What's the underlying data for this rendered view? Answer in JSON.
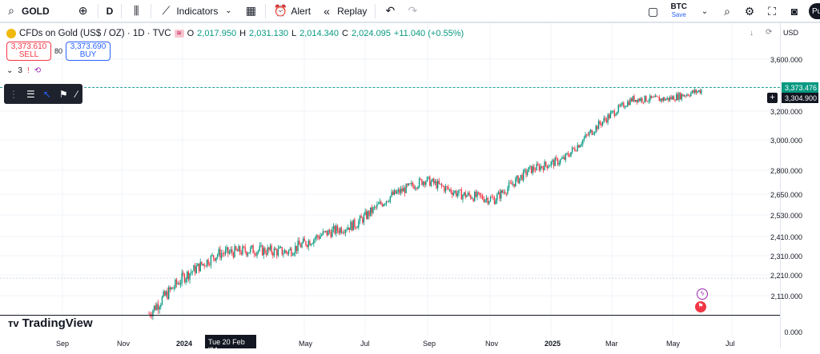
{
  "topbar": {
    "symbol": "GOLD",
    "interval": "D",
    "indicators_label": "Indicators",
    "alert_label": "Alert",
    "replay_label": "Replay",
    "btc_symbol": "BTC",
    "btc_save": "Save",
    "publish_short": "Pu"
  },
  "legend": {
    "title": "CFDs on Gold (US$ / OZ) · 1D · TVC",
    "o_label": "O",
    "o_val": "2,017.950",
    "h_label": "H",
    "h_val": "2,031.130",
    "l_label": "L",
    "l_val": "2,014.340",
    "c_label": "C",
    "c_val": "2,024.095",
    "change": "+11.040 (+0.55%)"
  },
  "trade": {
    "sell_price": "3,373.610",
    "sell_label": "SELL",
    "spread": "80",
    "buy_price": "3,373.690",
    "buy_label": "BUY"
  },
  "indicators_count": "3",
  "currency": "USD",
  "price_scale": [
    "3,600.000",
    "3,400.000",
    "3,200.000",
    "3,000.000",
    "2,800.000",
    "2,650.000",
    "2,530.000",
    "2,410.000",
    "2,310.000",
    "2,210.000",
    "2,110.000",
    "0.000"
  ],
  "price_tags": {
    "last": "3,373.476",
    "cursor": "3,304.900"
  },
  "x_axis": [
    "Sep",
    "Nov",
    "2024",
    "May",
    "Jul",
    "Sep",
    "Nov",
    "2025",
    "Mar",
    "May",
    "Jul"
  ],
  "date_tag": "Tue 20 Feb '24",
  "brand": "TradingView",
  "colors": {
    "up": "#089981",
    "down": "#f23645",
    "accent": "#2962ff"
  },
  "chart_data": {
    "type": "candlestick",
    "x": [
      "Feb '24",
      "Mar",
      "Apr",
      "May",
      "Jun",
      "Jul",
      "Aug",
      "Sep",
      "Oct",
      "Nov",
      "Dec",
      "Jan '25",
      "Feb",
      "Mar",
      "Apr",
      "May",
      "Jun"
    ],
    "close": [
      2030,
      2200,
      2320,
      2340,
      2330,
      2420,
      2480,
      2640,
      2740,
      2650,
      2620,
      2800,
      2870,
      3100,
      3300,
      3300,
      3373
    ]
  }
}
